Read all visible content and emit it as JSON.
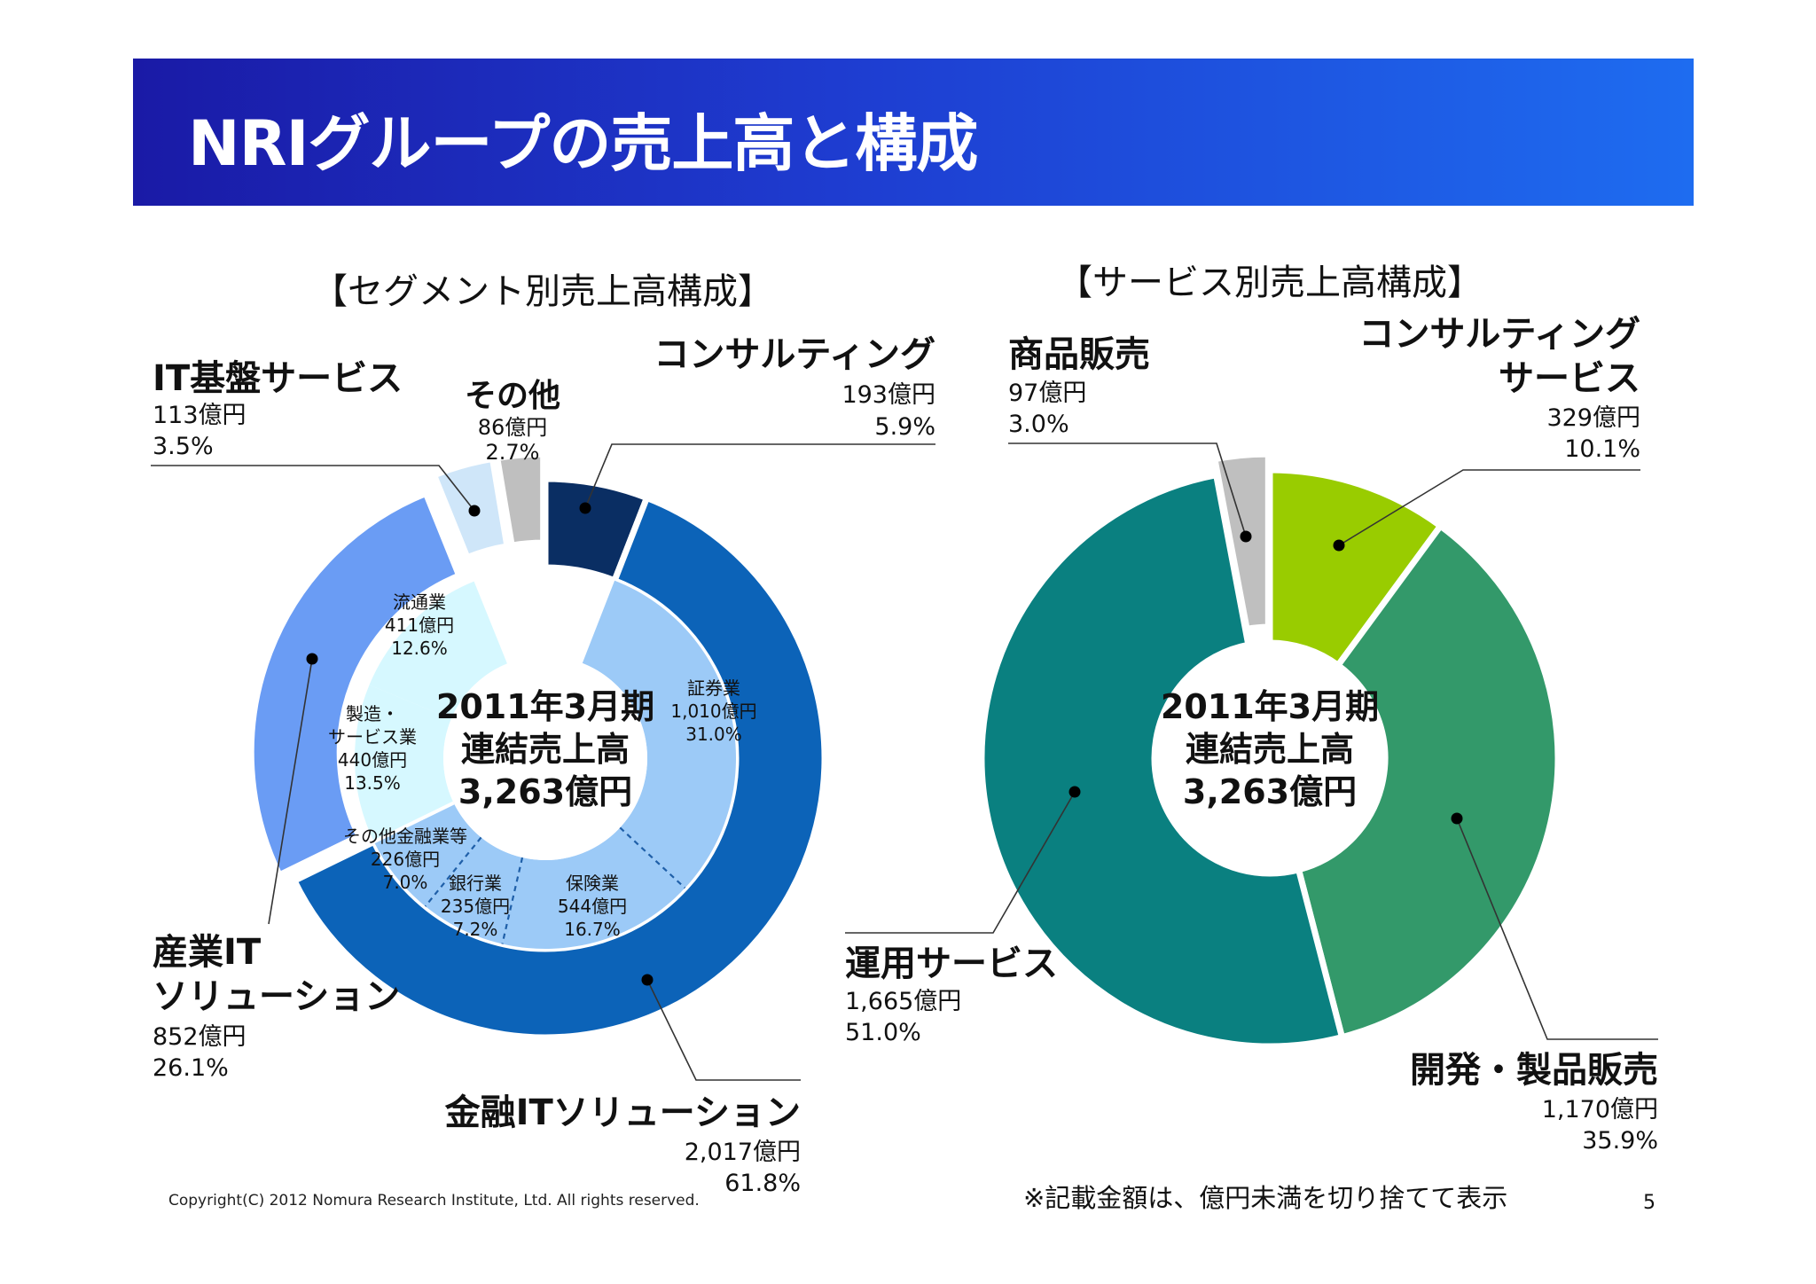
{
  "title": "NRIグループの売上高と構成",
  "footer": {
    "copyright": "Copyright(C) 2012 Nomura Research Institute, Ltd. All rights reserved.",
    "note": "※記載金額は、億円未満を切り捨てて表示",
    "page": "5"
  },
  "chart_data": [
    {
      "type": "pie",
      "title": "【セグメント別売上高構成】",
      "center_text": [
        "2011年3月期",
        "連結売上高",
        "3,263億円"
      ],
      "outer_ring": [
        {
          "name": "コンサルティング",
          "value": 193,
          "amount": "193億円",
          "percent": "5.9%",
          "color": "#0a2e63"
        },
        {
          "name": "金融ITソリューション",
          "value": 2017,
          "amount": "2,017億円",
          "percent": "61.8%",
          "color": "#0c63b8"
        },
        {
          "name": "産業IT ソリューション",
          "name_lines": [
            "産業IT",
            "ソリューション"
          ],
          "value": 852,
          "amount": "852億円",
          "percent": "26.1%",
          "color": "#6a9cf4"
        },
        {
          "name": "IT基盤サービス",
          "value": 113,
          "amount": "113億円",
          "percent": "3.5%",
          "color": "#cfe6f9"
        },
        {
          "name": "その他",
          "value": 86,
          "amount": "86億円",
          "percent": "2.7%",
          "color": "#bfbfbf"
        }
      ],
      "inner_ring": [
        {
          "name": "証券業",
          "value": 1010,
          "amount": "1,010億円",
          "percent": "31.0%",
          "color": "#9ccaf7"
        },
        {
          "name": "保険業",
          "value": 544,
          "amount": "544億円",
          "percent": "16.7%",
          "color": "#9ccaf7"
        },
        {
          "name": "銀行業",
          "value": 235,
          "amount": "235億円",
          "percent": "7.2%",
          "color": "#9ccaf7"
        },
        {
          "name": "その他金融業等",
          "value": 226,
          "amount": "226億円",
          "percent": "7.0%",
          "color": "#9ccaf7"
        },
        {
          "name": "製造・サービス業",
          "name_lines": [
            "製造・",
            "サービス業"
          ],
          "value": 440,
          "amount": "440億円",
          "percent": "13.5%",
          "color": "#d6f8ff"
        },
        {
          "name": "流通業",
          "value": 411,
          "amount": "411億円",
          "percent": "12.6%",
          "color": "#d6f8ff"
        }
      ]
    },
    {
      "type": "pie",
      "title": "【サービス別売上高構成】",
      "center_text": [
        "2011年3月期",
        "連結売上高",
        "3,263億円"
      ],
      "slices": [
        {
          "name": "コンサルティング サービス",
          "name_lines": [
            "コンサルティング",
            "サービス"
          ],
          "value": 329,
          "amount": "329億円",
          "percent": "10.1%",
          "color": "#99cc00"
        },
        {
          "name": "開発・製品販売",
          "value": 1170,
          "amount": "1,170億円",
          "percent": "35.9%",
          "color": "#33996a"
        },
        {
          "name": "運用サービス",
          "value": 1665,
          "amount": "1,665億円",
          "percent": "51.0%",
          "color": "#0a8080"
        },
        {
          "name": "商品販売",
          "value": 97,
          "amount": "97億円",
          "percent": "3.0%",
          "color": "#bfbfbf"
        }
      ]
    }
  ]
}
